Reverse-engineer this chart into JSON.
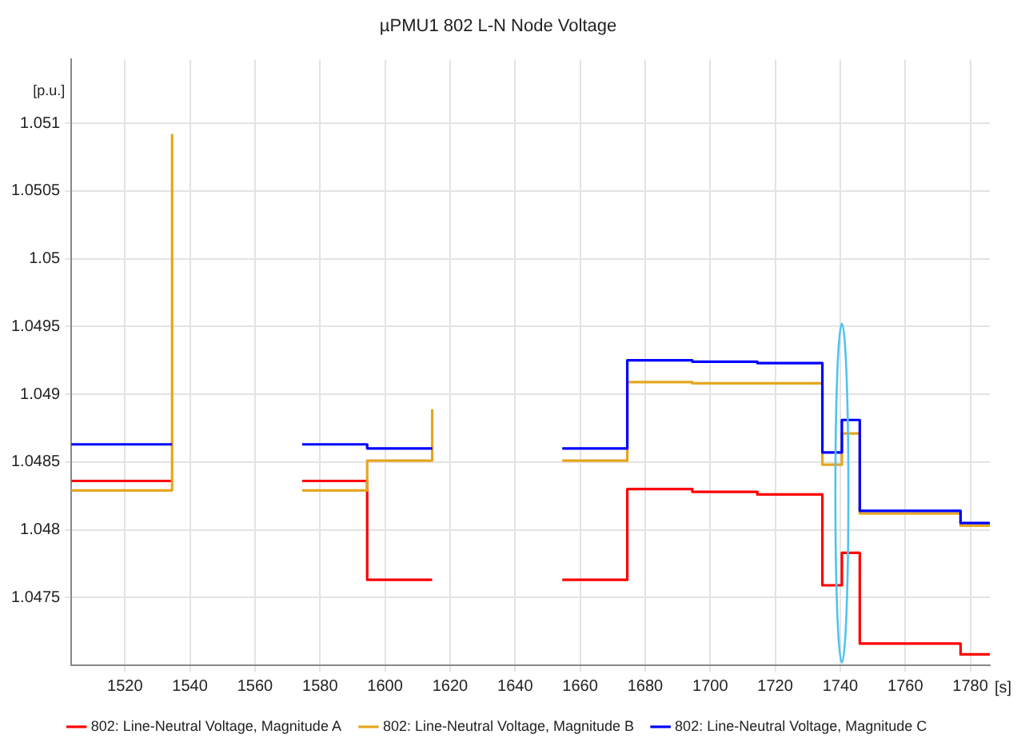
{
  "chart_data": {
    "type": "step",
    "title": "µPMU1 802 L-N Node Voltage",
    "ylabel": "[p.u.]",
    "xlabel": "[s]",
    "xlim": [
      1503.5,
      1786
    ],
    "xticks": [
      1520,
      1540,
      1560,
      1580,
      1600,
      1620,
      1640,
      1660,
      1680,
      1700,
      1720,
      1740,
      1760,
      1780
    ],
    "ylim": [
      1.047,
      1.05147
    ],
    "yticks": [
      1.0475,
      1.048,
      1.0485,
      1.049,
      1.0495,
      1.05,
      1.0505,
      1.051
    ],
    "grid": true,
    "legend": "bottom",
    "marker": "none",
    "line_style": "solid",
    "series": [
      {
        "name": "802: Line-Neutral Voltage, Magnitude A",
        "color": "#ff0000",
        "x": [
          1503.5,
          1534.5,
          1554,
          1574.5,
          1594.5,
          1614.5,
          1634,
          1654.5,
          1674.5,
          1694.5,
          1714.5,
          1734.5,
          1740.5,
          1746,
          1777,
          1786
        ],
        "values": [
          1.04836,
          1.04836,
          null,
          1.04836,
          1.04763,
          1.04763,
          null,
          1.04763,
          1.0483,
          1.04828,
          1.04826,
          1.04759,
          1.04783,
          1.04716,
          1.04708,
          1.04708
        ]
      },
      {
        "name": "802: Line-Neutral Voltage, Magnitude B",
        "color": "#e6a620",
        "x": [
          1503.5,
          1534.5,
          1534.5,
          1554,
          1574.5,
          1594.5,
          1614.5,
          1614.5,
          1634,
          1654.5,
          1674.5,
          1694.5,
          1714.5,
          1734.5,
          1740.5,
          1746,
          1777,
          1786
        ],
        "values": [
          1.04829,
          1.04829,
          1.05092,
          null,
          1.04829,
          1.04851,
          1.04851,
          1.04889,
          null,
          1.04851,
          1.04909,
          1.04908,
          1.04908,
          1.04848,
          1.04871,
          1.04812,
          1.04803,
          1.04803
        ]
      },
      {
        "name": "802: Line-Neutral Voltage, Magnitude C",
        "color": "#0000ff",
        "x": [
          1503.5,
          1534.5,
          1554,
          1574.5,
          1594.5,
          1614.5,
          1634,
          1654.5,
          1674.5,
          1694.5,
          1714.5,
          1734.5,
          1740.5,
          1746,
          1777,
          1786
        ],
        "values": [
          1.04863,
          1.04863,
          null,
          1.04863,
          1.0486,
          1.0486,
          null,
          1.0486,
          1.04925,
          1.04924,
          1.04923,
          1.04857,
          1.04881,
          1.04814,
          1.04805,
          1.04805
        ]
      }
    ]
  }
}
